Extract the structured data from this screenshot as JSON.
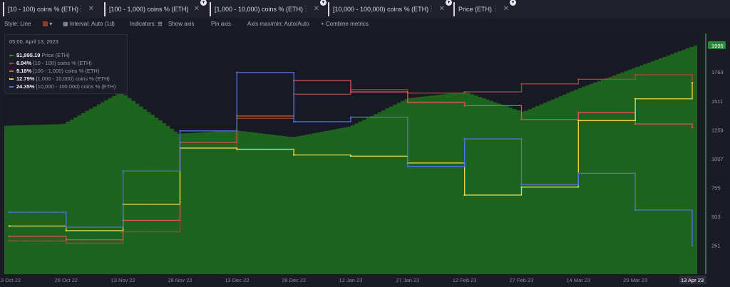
{
  "tabs": [
    {
      "label": "[10 - 100) coins % (ETH)",
      "color": "#a0483a"
    },
    {
      "label": "[100 - 1,000) coins % (ETH)",
      "color": "#e05353"
    },
    {
      "label": "[1,000 - 10,000) coins % (ETH)",
      "color": "#e8d84a"
    },
    {
      "label": "[10,000 - 100,000) coins % (ETH)",
      "color": "#4f72e0"
    },
    {
      "label": "Price (ETH)",
      "color": "#2e8b2e"
    }
  ],
  "toolbar": {
    "style": "Style: Line",
    "interval": "Interval: Auto (1d)",
    "indicators": "Indicators:",
    "show_axis": "Show axis",
    "pin_axis": "Pin axis",
    "axis_maxmin": "Axis max/min: Auto/Auto",
    "combine": "+ Combine metrics"
  },
  "legend": {
    "timestamp": "05:00, April 13, 2023",
    "rows": [
      {
        "value": "$1,995.19",
        "label": "Price (ETH)",
        "color": "#2e8b2e"
      },
      {
        "value": "6.94%",
        "label": "[10 - 100) coins % (ETH)",
        "color": "#a0483a"
      },
      {
        "value": "9.18%",
        "label": "[100 - 1,000) coins % (ETH)",
        "color": "#e05353"
      },
      {
        "value": "12.79%",
        "label": "[1,000 - 10,000) coins % (ETH)",
        "color": "#e8d84a"
      },
      {
        "value": "24.35%",
        "label": "[10,000 - 100,000) coins % (ETH)",
        "color": "#4f72e0"
      }
    ]
  },
  "chart_data": {
    "type": "line",
    "x": [
      "13 Oct 22",
      "28 Oct 22",
      "13 Nov 22",
      "28 Nov 22",
      "13 Dec 22",
      "28 Dec 22",
      "12 Jan 23",
      "27 Jan 23",
      "12 Feb 23",
      "27 Feb 23",
      "14 Mar 23",
      "29 Mar 23",
      "13 Apr 23"
    ],
    "x_tick_labels": [
      "13 Oct 22",
      "28 Oct 22",
      "13 Nov 22",
      "28 Nov 22",
      "13 Dec 22",
      "28 Dec 22",
      "12 Jan 23",
      "27 Jan 23",
      "12 Feb 23",
      "27 Feb 23",
      "14 Mar 23",
      "29 Mar 23",
      "13 Apr 23"
    ],
    "y_tick_labels": [
      "251",
      "503",
      "755",
      "1007",
      "1259",
      "1511",
      "1763",
      "1995"
    ],
    "ylim": [
      0,
      2100
    ],
    "series": [
      {
        "name": "Price (ETH)",
        "type": "bar",
        "color": "#1e6b1e",
        "values": [
          1295,
          1310,
          1590,
          1225,
          1255,
          1195,
          1290,
          1535,
          1590,
          1415,
          1625,
          1810,
          1995
        ]
      },
      {
        "name": "[10 - 100) coins % (ETH)",
        "color": "#a0483a",
        "values": [
          290,
          270,
          370,
          1100,
          1360,
          1570,
          1610,
          1580,
          1590,
          1660,
          1700,
          1740,
          1695
        ]
      },
      {
        "name": "[100 - 1,000) coins % (ETH)",
        "color": "#e05353",
        "values": [
          330,
          300,
          470,
          1150,
          1380,
          1690,
          1590,
          1500,
          1470,
          1350,
          1410,
          1310,
          1280
        ]
      },
      {
        "name": "[1,000 - 10,000) coins % (ETH)",
        "color": "#e8d84a",
        "values": [
          420,
          380,
          610,
          1100,
          1090,
          1040,
          1030,
          970,
          690,
          760,
          1340,
          1530,
          1670
        ]
      },
      {
        "name": "[10,000 - 100,000) coins % (ETH)",
        "color": "#4f72e0",
        "values": [
          540,
          410,
          900,
          1250,
          1760,
          1330,
          1370,
          940,
          1180,
          780,
          880,
          560,
          250
        ]
      }
    ]
  }
}
